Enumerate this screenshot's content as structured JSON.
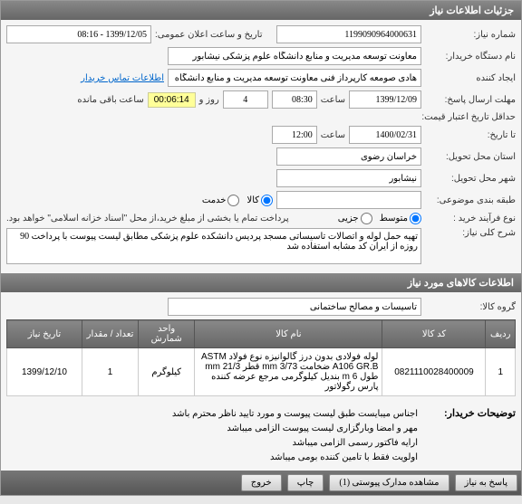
{
  "sections": {
    "need_info": "جزئیات اطلاعات نیاز",
    "items_info": "اطلاعات کالاهای مورد نیاز"
  },
  "labels": {
    "need_number": "شماره نیاز:",
    "announce_date": "تاریخ و ساعت اعلان عمومی:",
    "buyer_org": "نام دستگاه خریدار:",
    "creator": "ایجاد کننده",
    "buyer_contact": "اطلاعات تماس خریدار",
    "answer_deadline": "مهلت ارسال پاسخ:",
    "hour": "ساعت",
    "day_and": "روز و",
    "time_left": "ساعت باقی مانده",
    "validity_min": "حداقل تاریخ اعتبار قیمت:",
    "till_date": "تا تاریخ:",
    "delivery_province": "استان محل تحویل:",
    "delivery_city": "شهر محل تحویل:",
    "grouping": "طبقه بندی موضوعی:",
    "goods_service": "",
    "goods": "کالا",
    "service": "خدمت",
    "purchase_type": "نوع فرآیند خرید :",
    "medium": "متوسط",
    "small": "جزیی",
    "payment_note": "پرداخت تمام یا بخشی از مبلغ خرید،از محل \"اسناد خزانه اسلامی\" خواهد بود.",
    "main_desc": "شرح کلی نیاز:",
    "goods_group": "گروه کالا:",
    "buyer_explanations": "توضیحات خریدار:"
  },
  "values": {
    "need_number": "1199090964000631",
    "announce_date": "1399/12/05 - 08:16",
    "buyer_org": "معاونت توسعه مدیریت و منابع دانشگاه علوم پزشکی نیشابور",
    "creator": "هادی صومعه کارپرداز فنی معاونت توسعه مدیریت و منابع دانشگاه علوم پزشکی",
    "answer_date": "1399/12/09",
    "answer_time": "08:30",
    "days_left": "4",
    "timer": "00:06:14",
    "validity_date": "1400/02/31",
    "validity_time": "12:00",
    "province": "خراسان رضوی",
    "city": "نیشابور",
    "main_desc": "تهیه حمل لوله و اتصالات تاسیساتی مسجد پردیس دانشکده علوم پزشکی مطابق لیست پیوست با پرداخت 90 روزه از ایران کد مشابه استفاده شد",
    "goods_group": "تاسیسات و مصالح ساختمانی"
  },
  "radios": {
    "goods_checked": true,
    "service_checked": false,
    "medium_checked": true,
    "small_checked": false
  },
  "table": {
    "headers": {
      "idx": "ردیف",
      "code": "کد کالا",
      "name": "نام کالا",
      "unit": "واحد شمارش",
      "qty": "تعداد / مقدار",
      "date": "تاریخ نیاز"
    },
    "row": {
      "idx": "1",
      "code": "0821110028400009",
      "name": "لوله فولادی بدون درز گالوانیزه نوع فولاد ASTM A106 GR.B ضخامت mm 3/73 قطر mm 21/3 طول m 6 بندیل کیلوگرمی مرجع عرضه کننده پارس رگولاتور",
      "unit": "کیلوگرم",
      "qty": "1",
      "date": "1399/12/10"
    }
  },
  "buyer_notes": [
    "اجناس میبایست طبق لیست پیوست و مورد تایید ناظر محترم باشد",
    "مهر و امضا وبارگزاری لیست پیوست الزامی میباشد",
    "ارایه فاکتور رسمی  الزامی  میباشد",
    "اولویت فقط با تامین کننده بومی میباشد"
  ],
  "buttons": {
    "answer": "پاسخ به نیاز",
    "attachments": "مشاهده مدارک پیوستی (1)",
    "print": "چاپ",
    "close": "خروج"
  }
}
